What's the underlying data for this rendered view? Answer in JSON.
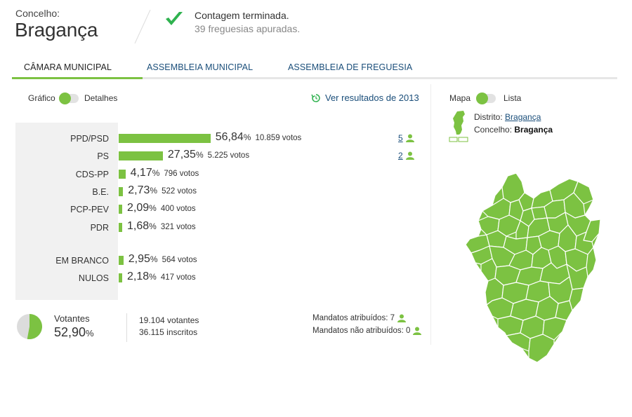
{
  "header": {
    "label": "Concelho:",
    "title": "Bragança",
    "status_line1": "Contagem terminada.",
    "status_line2": "39 freguesias apuradas."
  },
  "tabs": [
    {
      "label": "CÂMARA MUNICIPAL",
      "active": true
    },
    {
      "label": "ASSEMBLEIA MUNICIPAL",
      "active": false
    },
    {
      "label": "ASSEMBLEIA DE FREGUESIA",
      "active": false
    }
  ],
  "view_toggle": {
    "left": "Gráfico",
    "right": "Detalhes"
  },
  "previous_results_link": "Ver resultados de 2013",
  "map_toggle": {
    "left": "Mapa",
    "right": "Lista"
  },
  "location": {
    "district_label": "Distrito:",
    "district": "Bragança",
    "municipality_label": "Concelho:",
    "municipality": "Bragança"
  },
  "results": [
    {
      "party": "PPD/PSD",
      "percent": "56,84",
      "votes": "10.859 votos",
      "seats": "5",
      "share": 56.84
    },
    {
      "party": "PS",
      "percent": "27,35",
      "votes": "5.225 votos",
      "seats": "2",
      "share": 27.35
    },
    {
      "party": "CDS-PP",
      "percent": "4,17",
      "votes": "796 votos",
      "seats": "",
      "share": 4.17
    },
    {
      "party": "B.E.",
      "percent": "2,73",
      "votes": "522 votos",
      "seats": "",
      "share": 2.73
    },
    {
      "party": "PCP-PEV",
      "percent": "2,09",
      "votes": "400 votos",
      "seats": "",
      "share": 2.09
    },
    {
      "party": "PDR",
      "percent": "1,68",
      "votes": "321 votos",
      "seats": "",
      "share": 1.68
    }
  ],
  "other_votes": [
    {
      "party": "EM BRANCO",
      "percent": "2,95",
      "votes": "564 votos",
      "share": 2.95
    },
    {
      "party": "NULOS",
      "percent": "2,18",
      "votes": "417 votos",
      "share": 2.18
    }
  ],
  "pct_symbol": "%",
  "turnout": {
    "label": "Votantes",
    "percent": "52,90",
    "share": 52.9,
    "voters": "19.104 votantes",
    "registered": "36.115 inscritos"
  },
  "mandates": {
    "assigned": "Mandatos atribuídos: 7",
    "unassigned": "Mandatos não atribuídos: 0"
  },
  "colors": {
    "accent": "#7cc242",
    "link": "#1a4e7a"
  }
}
